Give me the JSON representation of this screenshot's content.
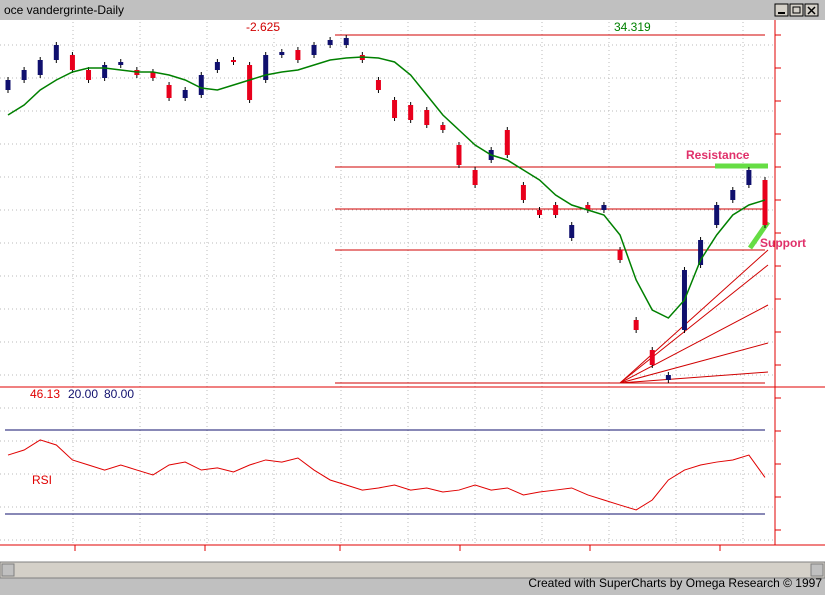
{
  "window": {
    "title": "oce vandergrinte-Daily",
    "footer": "Created with SuperCharts by Omega Research © 1997"
  },
  "chart_data": {
    "type": "candlestick",
    "annotations": {
      "change": "-2.625",
      "level": "34.319",
      "resistance": "Resistance",
      "support": "Support"
    },
    "up_color": "#10106e",
    "down_color": "#e8001c",
    "open": [
      32.12,
      32.52,
      32.72,
      33.32,
      33.52,
      32.92,
      32.6,
      33.12,
      32.92,
      32.84,
      32.32,
      31.8,
      31.92,
      32.92,
      33.32,
      33.12,
      32.52,
      33.52,
      33.72,
      33.52,
      33.92,
      33.92,
      33.52,
      32.52,
      31.72,
      31.52,
      31.32,
      30.72,
      29.92,
      28.92,
      29.32,
      30.52,
      28.32,
      27.32,
      27.52,
      26.2,
      27.52,
      27.32,
      25.72,
      22.92,
      21.72,
      20.52,
      22.52,
      25.12,
      26.72,
      27.72,
      28.32,
      28.52
    ],
    "close": [
      32.52,
      32.92,
      33.32,
      33.92,
      32.92,
      32.52,
      33.12,
      33.24,
      32.72,
      32.6,
      31.8,
      32.12,
      32.72,
      33.24,
      33.24,
      31.72,
      33.52,
      33.64,
      33.32,
      33.92,
      34.12,
      34.2,
      33.32,
      32.12,
      31.0,
      30.92,
      30.72,
      30.52,
      29.12,
      28.32,
      29.72,
      29.52,
      27.72,
      27.12,
      27.12,
      26.72,
      27.32,
      27.52,
      25.32,
      22.52,
      21.12,
      20.72,
      24.92,
      26.12,
      27.52,
      28.12,
      28.92,
      26.72
    ],
    "average": {
      "color": "#008000",
      "values": [
        31.12,
        31.52,
        32.12,
        32.52,
        32.84,
        33.0,
        33.0,
        32.92,
        32.84,
        32.84,
        32.72,
        32.52,
        32.2,
        32.12,
        32.32,
        32.52,
        32.72,
        32.84,
        32.92,
        33.12,
        33.32,
        33.4,
        33.44,
        33.4,
        33.24,
        32.72,
        31.92,
        31.12,
        30.52,
        29.92,
        29.52,
        29.32,
        28.92,
        28.52,
        27.92,
        27.52,
        27.32,
        27.12,
        26.32,
        24.52,
        23.32,
        23.0,
        23.72,
        25.32,
        26.32,
        27.12,
        27.52,
        27.72
      ]
    },
    "rsi": {
      "label": "RSI",
      "color": "#e00000",
      "values": [
        62.1,
        65.7,
        72.9,
        69.3,
        58.6,
        55.0,
        51.4,
        55.0,
        51.4,
        47.9,
        55.0,
        57.1,
        51.4,
        52.9,
        50.0,
        55.0,
        58.6,
        57.1,
        60.0,
        51.4,
        44.3,
        40.7,
        37.1,
        38.6,
        40.7,
        37.1,
        38.6,
        35.7,
        37.1,
        40.7,
        37.1,
        38.6,
        33.6,
        35.7,
        37.1,
        38.6,
        33.6,
        30.0,
        26.4,
        22.9,
        30.0,
        44.3,
        51.4,
        55.0,
        57.1,
        58.6,
        62.1,
        46.13
      ],
      "levels": [
        {
          "value": 20,
          "label": "20.00"
        },
        {
          "value": 80,
          "label": "80.00"
        }
      ]
    }
  }
}
